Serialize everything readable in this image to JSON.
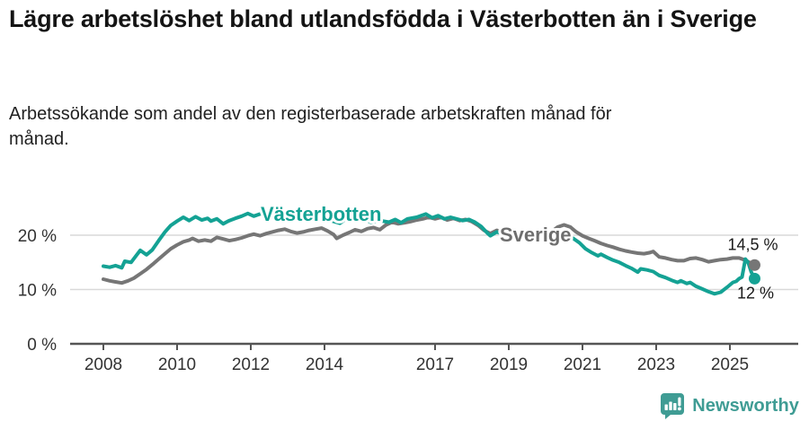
{
  "header": {
    "title": "Lägre arbetslöshet bland utlandsfödda i Västerbotten än i Sverige",
    "subtitle": "Arbetssökande som andel av den registerbaserade arbetskraften månad för månad."
  },
  "footer": {
    "brand": "Newsworthy",
    "logo_icon": "bar-chart-speech-bubble-icon"
  },
  "colors": {
    "vasterbotten_line": "#14a294",
    "sverige_line": "#767676",
    "sverige_label": "#6e6e6e",
    "gridline": "#d9d9d9",
    "axis": "#555555",
    "tick_text": "#333333",
    "annotation_text": "#191919",
    "brand_teal": "#3f9c94",
    "background": "#ffffff"
  },
  "chart_data": {
    "type": "line",
    "title": "Lägre arbetslöshet bland utlandsfödda i Västerbotten än i Sverige",
    "subtitle": "Arbetssökande som andel av den registerbaserade arbetskraften månad för månad.",
    "unit": "%",
    "grid": "horizontal",
    "legend_position": "inline-labels-on-lines",
    "x_axis": {
      "label": "",
      "tick_years": [
        2008,
        2010,
        2012,
        2014,
        2017,
        2019,
        2021,
        2023,
        2025
      ],
      "range": [
        2007.1,
        2026.8
      ]
    },
    "y_axis": {
      "label": "",
      "ticks": [
        {
          "value": 0,
          "label": "0 %"
        },
        {
          "value": 10,
          "label": "10 %"
        },
        {
          "value": 20,
          "label": "20 %"
        }
      ],
      "range": [
        0,
        25.5
      ]
    },
    "series": [
      {
        "name": "Sverige",
        "end_value": 14.5,
        "end_label": "14,5 %",
        "points": [
          [
            2008.0,
            11.9
          ],
          [
            2008.17,
            11.6
          ],
          [
            2008.33,
            11.4
          ],
          [
            2008.5,
            11.2
          ],
          [
            2008.67,
            11.6
          ],
          [
            2008.83,
            12.1
          ],
          [
            2009.0,
            12.9
          ],
          [
            2009.17,
            13.7
          ],
          [
            2009.33,
            14.6
          ],
          [
            2009.5,
            15.6
          ],
          [
            2009.67,
            16.6
          ],
          [
            2009.83,
            17.5
          ],
          [
            2010.0,
            18.2
          ],
          [
            2010.17,
            18.8
          ],
          [
            2010.33,
            19.1
          ],
          [
            2010.42,
            19.4
          ],
          [
            2010.58,
            18.9
          ],
          [
            2010.75,
            19.1
          ],
          [
            2010.92,
            18.9
          ],
          [
            2011.08,
            19.6
          ],
          [
            2011.25,
            19.3
          ],
          [
            2011.42,
            19.0
          ],
          [
            2011.58,
            19.2
          ],
          [
            2011.75,
            19.5
          ],
          [
            2011.92,
            19.9
          ],
          [
            2012.08,
            20.2
          ],
          [
            2012.25,
            19.9
          ],
          [
            2012.42,
            20.3
          ],
          [
            2012.58,
            20.6
          ],
          [
            2012.75,
            20.9
          ],
          [
            2012.92,
            21.1
          ],
          [
            2013.08,
            20.7
          ],
          [
            2013.25,
            20.4
          ],
          [
            2013.42,
            20.6
          ],
          [
            2013.58,
            20.9
          ],
          [
            2013.75,
            21.1
          ],
          [
            2013.92,
            21.3
          ],
          [
            2014.08,
            20.8
          ],
          [
            2014.25,
            20.1
          ],
          [
            2014.33,
            19.4
          ],
          [
            2014.5,
            20.0
          ],
          [
            2014.67,
            20.5
          ],
          [
            2014.83,
            21.0
          ],
          [
            2015.0,
            20.7
          ],
          [
            2015.17,
            21.2
          ],
          [
            2015.33,
            21.4
          ],
          [
            2015.5,
            21.0
          ],
          [
            2015.67,
            21.9
          ],
          [
            2015.83,
            22.4
          ],
          [
            2016.0,
            22.1
          ],
          [
            2016.17,
            22.3
          ],
          [
            2016.33,
            22.5
          ],
          [
            2016.5,
            22.8
          ],
          [
            2016.67,
            23.0
          ],
          [
            2016.83,
            23.3
          ],
          [
            2017.0,
            23.0
          ],
          [
            2017.17,
            23.3
          ],
          [
            2017.33,
            22.8
          ],
          [
            2017.5,
            23.1
          ],
          [
            2017.67,
            22.7
          ],
          [
            2017.83,
            22.9
          ],
          [
            2018.0,
            22.5
          ],
          [
            2018.17,
            21.8
          ],
          [
            2018.33,
            20.9
          ],
          [
            2018.5,
            20.3
          ],
          [
            2018.67,
            20.9
          ],
          [
            2018.83,
            20.6
          ],
          [
            2019.0,
            20.4
          ],
          [
            2019.17,
            20.2
          ],
          [
            2019.33,
            20.1
          ],
          [
            2019.5,
            19.9
          ],
          [
            2019.67,
            19.8
          ],
          [
            2019.83,
            19.9
          ],
          [
            2020.0,
            20.1
          ],
          [
            2020.17,
            20.7
          ],
          [
            2020.33,
            21.5
          ],
          [
            2020.5,
            21.9
          ],
          [
            2020.67,
            21.5
          ],
          [
            2020.83,
            20.6
          ],
          [
            2021.0,
            19.9
          ],
          [
            2021.17,
            19.4
          ],
          [
            2021.33,
            19.0
          ],
          [
            2021.5,
            18.5
          ],
          [
            2021.67,
            18.1
          ],
          [
            2021.83,
            17.8
          ],
          [
            2022.0,
            17.4
          ],
          [
            2022.17,
            17.1
          ],
          [
            2022.33,
            16.9
          ],
          [
            2022.5,
            16.7
          ],
          [
            2022.67,
            16.6
          ],
          [
            2022.83,
            16.8
          ],
          [
            2022.92,
            17.0
          ],
          [
            2023.08,
            16.0
          ],
          [
            2023.25,
            15.8
          ],
          [
            2023.42,
            15.5
          ],
          [
            2023.58,
            15.3
          ],
          [
            2023.75,
            15.3
          ],
          [
            2023.92,
            15.7
          ],
          [
            2024.08,
            15.8
          ],
          [
            2024.25,
            15.5
          ],
          [
            2024.42,
            15.1
          ],
          [
            2024.58,
            15.3
          ],
          [
            2024.75,
            15.5
          ],
          [
            2024.92,
            15.6
          ],
          [
            2025.08,
            15.8
          ],
          [
            2025.25,
            15.8
          ],
          [
            2025.42,
            15.4
          ],
          [
            2025.5,
            15.1
          ],
          [
            2025.58,
            14.8
          ],
          [
            2025.67,
            14.5
          ]
        ]
      },
      {
        "name": "Västerbotten",
        "end_value": 12,
        "end_label": "12 %",
        "points": [
          [
            2008.0,
            14.3
          ],
          [
            2008.17,
            14.1
          ],
          [
            2008.33,
            14.4
          ],
          [
            2008.5,
            14.0
          ],
          [
            2008.58,
            15.2
          ],
          [
            2008.75,
            15.0
          ],
          [
            2008.92,
            16.5
          ],
          [
            2009.0,
            17.2
          ],
          [
            2009.17,
            16.4
          ],
          [
            2009.33,
            17.3
          ],
          [
            2009.5,
            19.0
          ],
          [
            2009.67,
            20.6
          ],
          [
            2009.83,
            21.8
          ],
          [
            2010.0,
            22.6
          ],
          [
            2010.17,
            23.3
          ],
          [
            2010.33,
            22.7
          ],
          [
            2010.5,
            23.4
          ],
          [
            2010.67,
            22.8
          ],
          [
            2010.83,
            23.1
          ],
          [
            2010.92,
            22.6
          ],
          [
            2011.08,
            23.0
          ],
          [
            2011.25,
            22.1
          ],
          [
            2011.42,
            22.7
          ],
          [
            2011.58,
            23.1
          ],
          [
            2011.75,
            23.5
          ],
          [
            2011.92,
            24.0
          ],
          [
            2012.08,
            23.5
          ],
          [
            2012.25,
            23.9
          ],
          [
            2012.42,
            24.2
          ],
          [
            2012.58,
            23.8
          ],
          [
            2012.75,
            24.0
          ],
          [
            2012.92,
            23.5
          ],
          [
            2013.17,
            23.8
          ],
          [
            2013.42,
            23.4
          ],
          [
            2013.67,
            23.7
          ],
          [
            2013.92,
            23.3
          ],
          [
            2014.17,
            22.7
          ],
          [
            2014.42,
            22.2
          ],
          [
            2014.58,
            23.0
          ],
          [
            2014.83,
            23.2
          ],
          [
            2015.08,
            23.0
          ],
          [
            2015.25,
            22.4
          ],
          [
            2015.5,
            22.7
          ],
          [
            2015.75,
            22.4
          ],
          [
            2015.92,
            22.9
          ],
          [
            2016.08,
            22.3
          ],
          [
            2016.25,
            23.0
          ],
          [
            2016.5,
            23.3
          ],
          [
            2016.75,
            23.9
          ],
          [
            2016.92,
            23.2
          ],
          [
            2017.08,
            23.6
          ],
          [
            2017.25,
            23.0
          ],
          [
            2017.42,
            23.3
          ],
          [
            2017.58,
            23.0
          ],
          [
            2017.75,
            22.7
          ],
          [
            2017.92,
            22.9
          ],
          [
            2018.08,
            22.4
          ],
          [
            2018.25,
            21.6
          ],
          [
            2018.42,
            20.4
          ],
          [
            2018.5,
            19.9
          ],
          [
            2018.67,
            20.6
          ],
          [
            2018.83,
            20.3
          ],
          [
            2019.0,
            20.1
          ],
          [
            2019.25,
            19.8
          ],
          [
            2019.5,
            19.6
          ],
          [
            2019.75,
            19.4
          ],
          [
            2019.92,
            19.6
          ],
          [
            2020.08,
            19.9
          ],
          [
            2020.25,
            20.3
          ],
          [
            2020.42,
            20.6
          ],
          [
            2020.58,
            20.2
          ],
          [
            2020.75,
            19.4
          ],
          [
            2020.92,
            18.6
          ],
          [
            2021.08,
            17.5
          ],
          [
            2021.25,
            16.8
          ],
          [
            2021.42,
            16.2
          ],
          [
            2021.5,
            16.5
          ],
          [
            2021.67,
            15.9
          ],
          [
            2021.83,
            15.4
          ],
          [
            2022.0,
            15.0
          ],
          [
            2022.17,
            14.4
          ],
          [
            2022.33,
            13.9
          ],
          [
            2022.5,
            13.2
          ],
          [
            2022.58,
            13.8
          ],
          [
            2022.75,
            13.6
          ],
          [
            2022.92,
            13.3
          ],
          [
            2023.08,
            12.6
          ],
          [
            2023.25,
            12.2
          ],
          [
            2023.42,
            11.7
          ],
          [
            2023.58,
            11.3
          ],
          [
            2023.67,
            11.6
          ],
          [
            2023.83,
            11.1
          ],
          [
            2023.92,
            11.3
          ],
          [
            2024.08,
            10.6
          ],
          [
            2024.25,
            10.1
          ],
          [
            2024.42,
            9.6
          ],
          [
            2024.58,
            9.2
          ],
          [
            2024.75,
            9.5
          ],
          [
            2024.92,
            10.4
          ],
          [
            2025.08,
            11.3
          ],
          [
            2025.17,
            11.5
          ],
          [
            2025.25,
            12.0
          ],
          [
            2025.33,
            12.3
          ],
          [
            2025.42,
            15.6
          ],
          [
            2025.5,
            14.9
          ],
          [
            2025.58,
            13.2
          ],
          [
            2025.67,
            12.0
          ]
        ]
      }
    ]
  }
}
